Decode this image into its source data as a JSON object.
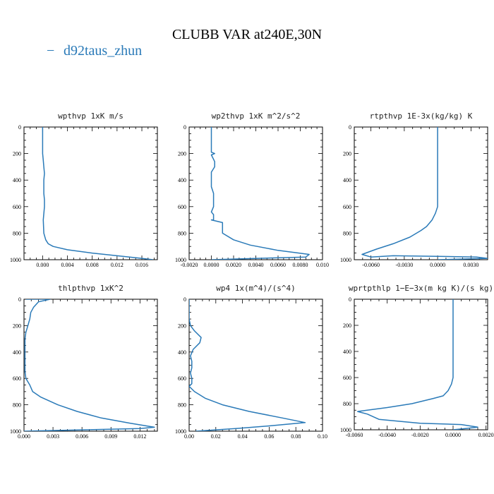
{
  "title": "CLUBB VAR at240E,30N",
  "legend": {
    "marker": "−",
    "label": "d92taus_zhun",
    "color": "#2a7ab8"
  },
  "chart_data": [
    {
      "type": "line",
      "title": "wpthvp   1xK m/s",
      "series": [
        {
          "name": "d92taus_zhun",
          "color": "#2a7ab8",
          "x": [
            0.0,
            0.0,
            0.0,
            0.0,
            0.0,
            0.0001,
            0.0002,
            0.0003,
            0.0002,
            0.0002,
            0.0002,
            0.0003,
            0.0003,
            0.0001,
            0.0002,
            0.0005,
            0.0009,
            0.0017,
            0.004,
            0.008,
            0.012,
            0.016,
            0.0178
          ],
          "y": [
            0,
            50,
            100,
            150,
            200,
            250,
            300,
            350,
            400,
            450,
            500,
            550,
            600,
            700,
            800,
            850,
            880,
            900,
            925,
            950,
            970,
            990,
            1000
          ]
        }
      ],
      "ylim": [
        1000,
        0
      ],
      "xlim": [
        -0.003,
        0.0185
      ],
      "xticks": [
        0.0,
        0.004,
        0.008,
        0.012,
        0.016
      ],
      "xticklabels": [
        "0.000",
        "0.004",
        "0.008",
        "0.012",
        "0.016"
      ],
      "yticks": [
        0,
        200,
        400,
        600,
        800,
        1000
      ],
      "yticklabels": [
        "0",
        "200",
        "400",
        "600",
        "800",
        "1000"
      ]
    },
    {
      "type": "line",
      "title": "wp2thvp   1xK m^2/s^2",
      "series": [
        {
          "name": "d92taus_zhun",
          "color": "#2a7ab8",
          "x": [
            0.0,
            0.0,
            0.0,
            0.0,
            0.0003,
            0.0,
            0.0003,
            0.0003,
            0.0,
            0.0,
            0.0,
            0.0002,
            0.0002,
            0.0,
            0.0002,
            0.0002,
            0.0002,
            0.0,
            0.0,
            0.001,
            0.001,
            0.002,
            0.0035,
            0.006,
            0.0088,
            0.0085,
            0.0
          ],
          "y": [
            0,
            50,
            100,
            190,
            200,
            210,
            260,
            300,
            340,
            400,
            450,
            500,
            600,
            640,
            660,
            690,
            700,
            700,
            700,
            720,
            800,
            850,
            890,
            930,
            960,
            980,
            1000
          ]
        }
      ],
      "ylim": [
        1000,
        0
      ],
      "xlim": [
        -0.002,
        0.01
      ],
      "xticks": [
        -0.002,
        0.0,
        0.002,
        0.004,
        0.006,
        0.008,
        0.01
      ],
      "xticklabels": [
        "-0.0020",
        "0.0000",
        "0.0020",
        "0.0040",
        "0.0060",
        "0.0080",
        "0.010"
      ],
      "yticks": [
        0,
        200,
        400,
        600,
        800,
        1000
      ],
      "yticklabels": [
        "0",
        "200",
        "400",
        "600",
        "800",
        "1000"
      ]
    },
    {
      "type": "line",
      "title": "rtpthvp   1E-3x(kg/kg) K",
      "series": [
        {
          "name": "d92taus_zhun",
          "color": "#2a7ab8",
          "x": [
            0.0,
            0.0,
            0.0,
            0.0,
            0.0,
            0.0,
            0.0,
            0.0,
            -0.0002,
            -0.0005,
            -0.001,
            -0.0015,
            -0.0025,
            -0.004,
            -0.0055,
            -0.0068,
            -0.006,
            -0.004,
            0.0,
            0.0035,
            0.0045,
            0.0
          ],
          "y": [
            0,
            100,
            200,
            300,
            400,
            500,
            550,
            600,
            650,
            700,
            750,
            780,
            830,
            880,
            920,
            960,
            980,
            970,
            975,
            980,
            990,
            1000
          ]
        }
      ],
      "ylim": [
        1000,
        0
      ],
      "xlim": [
        -0.0075,
        0.0045
      ],
      "xticks": [
        -0.006,
        -0.003,
        0.0,
        0.003
      ],
      "xticklabels": [
        "-0.0060",
        "-0.0030",
        "0.0000",
        "0.0030"
      ],
      "yticks": [
        0,
        200,
        400,
        600,
        800,
        1000
      ],
      "yticklabels": [
        "0",
        "200",
        "400",
        "600",
        "800",
        "1000"
      ]
    },
    {
      "type": "line",
      "title": "thlpthvp   1xK^2",
      "series": [
        {
          "name": "d92taus_zhun",
          "color": "#2a7ab8",
          "x": [
            0.0002,
            0.0027,
            0.0015,
            0.001,
            0.0007,
            0.0006,
            0.0004,
            0.0002,
            0.0001,
            0.0001,
            0.0001,
            0.0001,
            0.0002,
            0.0006,
            0.0009,
            0.0017,
            0.0035,
            0.0055,
            0.008,
            0.011,
            0.0135,
            0.012,
            0.006,
            0.0
          ],
          "y": [
            0,
            0,
            20,
            60,
            100,
            150,
            200,
            250,
            300,
            400,
            500,
            550,
            600,
            650,
            700,
            740,
            800,
            850,
            900,
            940,
            970,
            980,
            990,
            1000
          ]
        }
      ],
      "ylim": [
        1000,
        0
      ],
      "xlim": [
        0.0,
        0.0138
      ],
      "xticks": [
        0.0,
        0.003,
        0.006,
        0.009,
        0.012
      ],
      "xticklabels": [
        "0.000",
        "0.003",
        "0.006",
        "0.009",
        "0.012"
      ],
      "yticks": [
        0,
        200,
        400,
        600,
        800,
        1000
      ],
      "yticklabels": [
        "0",
        "200",
        "400",
        "600",
        "800",
        "1000"
      ]
    },
    {
      "type": "line",
      "title": "wp4   1x(m^4)/(s^4)",
      "series": [
        {
          "name": "d92taus_zhun",
          "color": "#2a7ab8",
          "x": [
            0.0,
            0.0,
            0.0,
            0.001,
            0.004,
            0.009,
            0.008,
            0.003,
            0.001,
            0.002,
            0.002,
            0.001,
            0.002,
            0.002,
            0.0,
            0.004,
            0.012,
            0.025,
            0.045,
            0.07,
            0.087,
            0.06,
            0.035,
            0.005
          ],
          "y": [
            0,
            100,
            150,
            200,
            240,
            290,
            330,
            380,
            430,
            470,
            520,
            560,
            600,
            640,
            660,
            700,
            750,
            800,
            850,
            900,
            935,
            960,
            980,
            1000
          ]
        }
      ],
      "ylim": [
        1000,
        0
      ],
      "xlim": [
        0.0,
        0.1
      ],
      "xticks": [
        0.0,
        0.02,
        0.04,
        0.06,
        0.08,
        0.1
      ],
      "xticklabels": [
        "0.00",
        "0.02",
        "0.04",
        "0.06",
        "0.08",
        "0.10"
      ],
      "yticks": [
        0,
        200,
        400,
        600,
        800,
        1000
      ],
      "yticklabels": [
        "0",
        "200",
        "400",
        "600",
        "800",
        "1000"
      ]
    },
    {
      "type": "line",
      "title": "wprtpthlp   1−E−3x(m kg K)/(s kg)",
      "series": [
        {
          "name": "d92taus_zhun",
          "color": "#2a7ab8",
          "x": [
            0.0,
            0.0,
            0.0,
            0.0,
            0.0,
            0.0,
            0.0,
            -0.0001,
            -0.0003,
            -0.0006,
            -0.0012,
            -0.0025,
            -0.004,
            -0.0058,
            -0.0052,
            -0.0045,
            -0.002,
            0.0005,
            0.0015,
            0.0008,
            0.0
          ],
          "y": [
            0,
            100,
            200,
            300,
            400,
            500,
            600,
            650,
            700,
            740,
            760,
            800,
            830,
            860,
            880,
            920,
            950,
            960,
            980,
            990,
            1000
          ]
        }
      ],
      "ylim": [
        1000,
        0
      ],
      "xlim": [
        -0.006,
        0.0021
      ],
      "xticks": [
        -0.006,
        -0.004,
        -0.002,
        0.0,
        0.002
      ],
      "xticklabels": [
        "-0.0060",
        "-0.0040",
        "-0.0020",
        "0.0000",
        "0.0020"
      ],
      "yticks": [
        0,
        200,
        400,
        600,
        800,
        1000
      ],
      "yticklabels": [
        "0",
        "200",
        "400",
        "600",
        "800",
        "1000"
      ]
    }
  ]
}
